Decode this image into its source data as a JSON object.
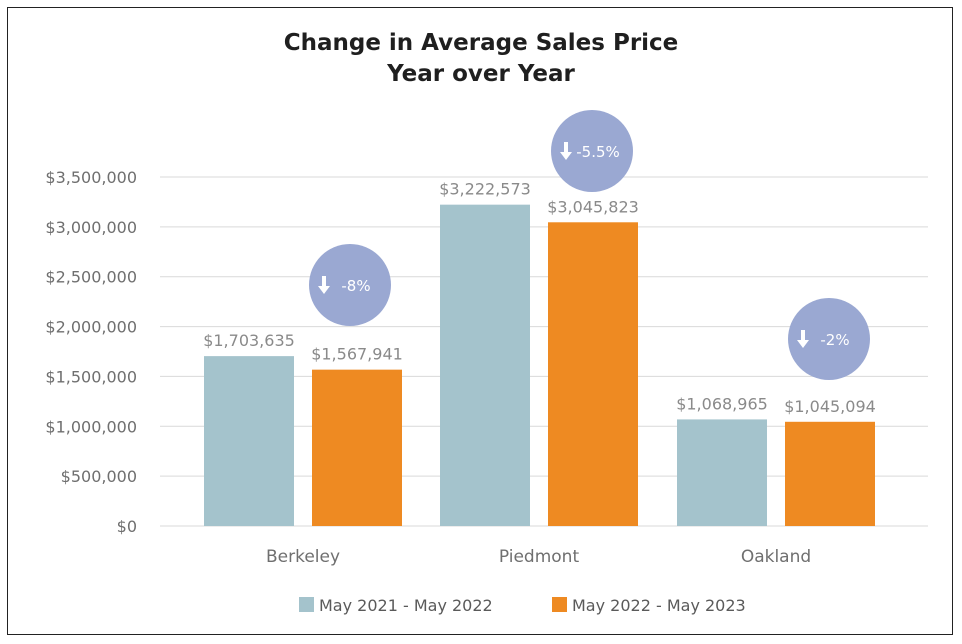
{
  "chart_data": {
    "type": "bar",
    "title": "Change in Average Sales Price",
    "subtitle": "Year over Year",
    "categories": [
      "Berkeley",
      "Piedmont",
      "Oakland"
    ],
    "series": [
      {
        "name": "May 2021 - May 2022",
        "color": "#a4c3cc",
        "values": [
          1703635,
          3222573,
          1068965
        ],
        "labels": [
          "$1,703,635",
          "$3,222,573",
          "$1,068,965"
        ]
      },
      {
        "name": "May 2022 - May 2023",
        "color": "#ee8a22",
        "values": [
          1567941,
          3045823,
          1045094
        ],
        "labels": [
          "$1,567,941",
          "$3,045,823",
          "$1,045,094"
        ]
      }
    ],
    "changes": [
      "-8%",
      "-5.5%",
      "-2%"
    ],
    "badge_color": "#9aa8d2",
    "ylim": [
      0,
      3500000
    ],
    "yticks": [
      "$0",
      "$500,000",
      "$1,000,000",
      "$1,500,000",
      "$2,000,000",
      "$2,500,000",
      "$3,000,000",
      "$3,500,000"
    ],
    "ytick_values": [
      0,
      500000,
      1000000,
      1500000,
      2000000,
      2500000,
      3000000,
      3500000
    ],
    "grid": true,
    "legend": "bottom"
  }
}
